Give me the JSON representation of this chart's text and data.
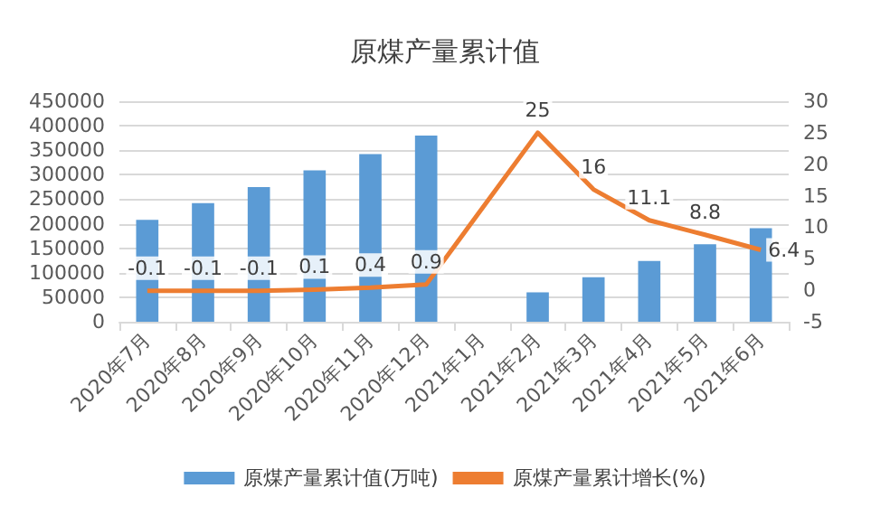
{
  "chart_data": {
    "type": "bar",
    "title": "原煤产量累计值",
    "categories": [
      "2020年7月",
      "2020年8月",
      "2020年9月",
      "2020年10月",
      "2020年11月",
      "2020年12月",
      "2021年1月",
      "2021年2月",
      "2021年3月",
      "2021年4月",
      "2021年5月",
      "2021年6月"
    ],
    "series": [
      {
        "name": "原煤产量累计值(万吨)",
        "color": "#5b9bd5",
        "values": [
          208000,
          242000,
          275000,
          309000,
          342000,
          380000,
          null,
          60000,
          91000,
          124000,
          158000,
          191000
        ]
      },
      {
        "name": "原煤产量累计增长(%)",
        "type": "line",
        "axis": "y2",
        "color": "#ed7d31",
        "values": [
          -0.1,
          -0.1,
          -0.1,
          0.1,
          0.4,
          0.9,
          null,
          25,
          16,
          11.1,
          8.8,
          6.4
        ],
        "value_labels": [
          "-0.1",
          "-0.1",
          "-0.1",
          "0.1",
          "0.4",
          "0.9",
          null,
          "25",
          "16",
          "11.1",
          "8.8",
          "6.4"
        ]
      }
    ],
    "ylim": [
      0,
      450000
    ],
    "yticks": [
      0,
      50000,
      100000,
      150000,
      200000,
      250000,
      300000,
      350000,
      400000,
      450000
    ],
    "y2lim": [
      -5,
      30
    ],
    "y2ticks": [
      -5,
      0,
      5,
      10,
      15,
      20,
      25,
      30
    ],
    "grid": "y",
    "legend": "bottom",
    "marker": "none"
  }
}
